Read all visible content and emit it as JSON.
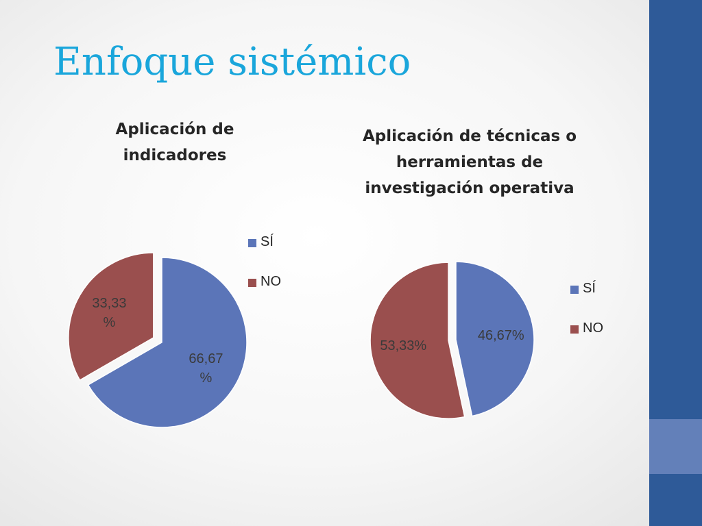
{
  "slide": {
    "title": "Enfoque sistémico",
    "accent_color": "#2e5a98",
    "title_color": "#1aa6db"
  },
  "chart_data": [
    {
      "type": "pie",
      "title_lines": [
        "Aplicación de",
        "indicadores"
      ],
      "categories": [
        "SÍ",
        "NO"
      ],
      "values": [
        66.67,
        33.33
      ],
      "colors": [
        "#5b75b8",
        "#9a4f4e"
      ],
      "data_labels": [
        [
          "66,67",
          "%"
        ],
        [
          "33,33",
          "%"
        ]
      ],
      "exploded_slice": "NO",
      "legend": {
        "position": "right",
        "entries": [
          "SÍ",
          "NO"
        ]
      }
    },
    {
      "type": "pie",
      "title_lines": [
        "Aplicación de técnicas o",
        "herramientas de",
        "investigación operativa"
      ],
      "categories": [
        "SÍ",
        "NO"
      ],
      "values": [
        46.67,
        53.33
      ],
      "colors": [
        "#5b75b8",
        "#9a4f4e"
      ],
      "data_labels": [
        [
          "46,67%"
        ],
        [
          "53,33%"
        ]
      ],
      "exploded_slice": "NO",
      "legend": {
        "position": "right",
        "entries": [
          "SÍ",
          "NO"
        ]
      }
    }
  ]
}
